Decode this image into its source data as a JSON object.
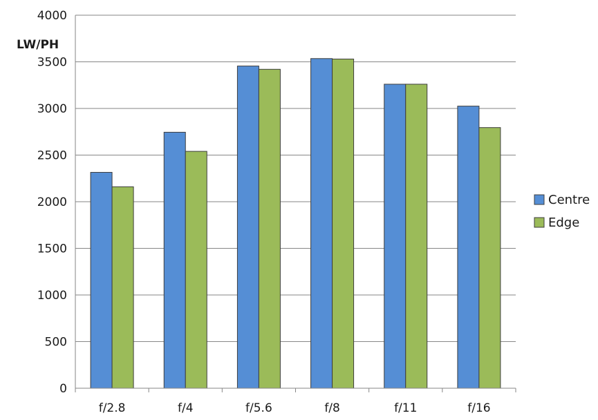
{
  "chart_data": {
    "type": "bar",
    "title": "",
    "xlabel": "",
    "ylabel": "LW/PH",
    "categories": [
      "f/2.8",
      "f/4",
      "f/5.6",
      "f/8",
      "f/11",
      "f/16"
    ],
    "series": [
      {
        "name": "Centre",
        "values": [
          2315,
          2745,
          3455,
          3535,
          3260,
          3025
        ],
        "color": "#558ed5"
      },
      {
        "name": "Edge",
        "values": [
          2160,
          2540,
          3420,
          3530,
          3260,
          2795
        ],
        "color": "#9bbb59"
      }
    ],
    "ylim": [
      0,
      4000
    ],
    "yticks": [
      "0",
      "500",
      "1000",
      "1500",
      "2000",
      "2500",
      "3000",
      "3500",
      "4000"
    ],
    "ytick_values": [
      0,
      500,
      1000,
      1500,
      2000,
      2500,
      3000,
      3500,
      4000
    ],
    "grid": true,
    "legend_position": "right"
  }
}
